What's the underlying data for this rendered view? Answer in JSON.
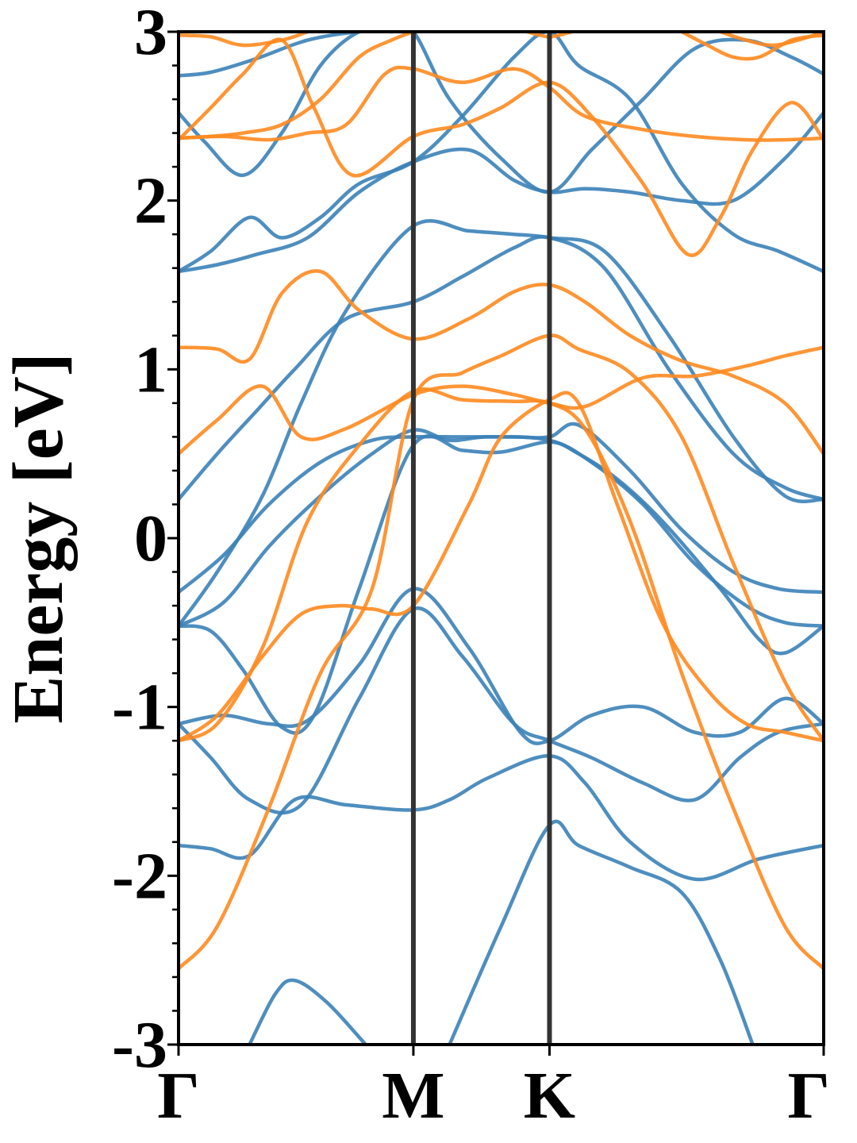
{
  "chart_data": {
    "type": "line",
    "title": "",
    "ylabel": "Energy [eV]",
    "xlabel": "",
    "ylim": [
      -3,
      3
    ],
    "yticks": [
      "3",
      "2",
      "1",
      "0",
      "-1",
      "-2",
      "-3"
    ],
    "ytick_values": [
      3,
      2,
      1,
      0,
      -1,
      -2,
      -3
    ],
    "minor_y_step": 0.2,
    "kpath": [
      {
        "label": "Γ",
        "k": 0
      },
      {
        "label": "M",
        "k": 0.364
      },
      {
        "label": "K",
        "k": 0.575
      },
      {
        "label": "Γ",
        "k": 1
      }
    ],
    "kpath_line_color": "#333333",
    "series": [
      {
        "color": "#3b82b8",
        "k": [
          0,
          0.05,
          0.11,
          0.18,
          0.26,
          0.364,
          0.42,
          0.48,
          0.575,
          0.63,
          0.7,
          0.8,
          0.9,
          1
        ],
        "y": [
          -1.82,
          -1.84,
          -1.88,
          -1.55,
          -1.58,
          -1.61,
          -1.55,
          -1.42,
          -1.29,
          -1.45,
          -1.8,
          -2.02,
          -1.9,
          -1.82
        ]
      },
      {
        "color": "#3b82b8",
        "k": [
          0,
          0.05,
          0.11,
          0.19,
          0.28,
          0.364,
          0.44,
          0.52,
          0.575,
          0.64,
          0.72,
          0.8,
          0.87,
          0.93,
          1
        ],
        "y": [
          -1.1,
          -1.3,
          -1.55,
          -1.58,
          -0.95,
          -0.42,
          -0.7,
          -1.1,
          -1.2,
          -1.3,
          -1.45,
          -1.55,
          -1.3,
          -1.15,
          -1.1
        ]
      },
      {
        "color": "#3b82b8",
        "k": [
          0,
          0.07,
          0.14,
          0.2,
          0.28,
          0.364,
          0.45,
          0.53,
          0.575,
          0.64,
          0.72,
          0.8,
          0.87,
          0.94,
          1
        ],
        "y": [
          -1.1,
          -1.05,
          -1.1,
          -1.08,
          -0.75,
          -0.3,
          -0.65,
          -1.15,
          -1.2,
          -1.05,
          -1.0,
          -1.15,
          -1.15,
          -0.95,
          -1.1
        ]
      },
      {
        "color": "#3b82b8",
        "k": [
          0,
          0.05,
          0.1,
          0.16,
          0.21,
          0.28,
          0.364,
          0.44,
          0.5,
          0.575,
          0.62,
          0.68,
          0.75,
          0.84,
          0.9,
          0.94,
          1
        ],
        "y": [
          -0.52,
          -0.55,
          -0.78,
          -1.12,
          -1.05,
          -0.3,
          0.55,
          0.52,
          0.51,
          0.57,
          0.5,
          0.35,
          0.1,
          -0.3,
          -0.6,
          -0.68,
          -0.52
        ]
      },
      {
        "color": "#3b82b8",
        "k": [
          0,
          0.07,
          0.14,
          0.22,
          0.3,
          0.364,
          0.42,
          0.48,
          0.575,
          0.64,
          0.72,
          0.8,
          0.88,
          0.94,
          1
        ],
        "y": [
          -0.52,
          -0.38,
          -0.05,
          0.25,
          0.5,
          0.64,
          0.58,
          0.6,
          0.58,
          0.45,
          0.2,
          -0.15,
          -0.4,
          -0.5,
          -0.52
        ]
      },
      {
        "color": "#3b82b8",
        "k": [
          0,
          0.07,
          0.14,
          0.22,
          0.3,
          0.364,
          0.44,
          0.52,
          0.575,
          0.62,
          0.7,
          0.78,
          0.86,
          0.93,
          1
        ],
        "y": [
          -0.32,
          -0.1,
          0.2,
          0.45,
          0.58,
          0.6,
          0.6,
          0.6,
          0.6,
          0.67,
          0.4,
          0.05,
          -0.2,
          -0.3,
          -0.32
        ]
      },
      {
        "color": "#3b82b8",
        "k": [
          0,
          0.06,
          0.12,
          0.18,
          0.26,
          0.364,
          0.44,
          0.52,
          0.575,
          0.66,
          0.76,
          0.86,
          0.94,
          1
        ],
        "y": [
          0.23,
          0.5,
          0.75,
          1.0,
          1.3,
          1.4,
          1.55,
          1.72,
          1.78,
          1.6,
          1.0,
          0.5,
          0.3,
          0.23
        ]
      },
      {
        "color": "#3b82b8",
        "k": [
          0,
          0.06,
          0.13,
          0.19,
          0.26,
          0.364,
          0.45,
          0.52,
          0.575,
          0.66,
          0.76,
          0.86,
          0.94,
          1
        ],
        "y": [
          -0.52,
          -0.2,
          0.25,
          0.8,
          1.35,
          1.85,
          1.82,
          1.8,
          1.78,
          1.7,
          1.2,
          0.6,
          0.25,
          0.23
        ]
      },
      {
        "color": "#3b82b8",
        "k": [
          0,
          0.05,
          0.11,
          0.16,
          0.22,
          0.28,
          0.364,
          0.44,
          0.52,
          0.575,
          0.62,
          0.7,
          0.78,
          0.86,
          0.93,
          1
        ],
        "y": [
          1.58,
          1.7,
          1.9,
          1.78,
          1.9,
          2.1,
          2.23,
          2.5,
          2.85,
          3.0,
          2.8,
          2.6,
          2.1,
          1.8,
          1.7,
          1.58
        ]
      },
      {
        "color": "#3b82b8",
        "k": [
          0,
          0.06,
          0.12,
          0.2,
          0.28,
          0.364,
          0.45,
          0.52,
          0.575,
          0.63,
          0.7,
          0.78,
          0.86,
          0.94,
          1
        ],
        "y": [
          1.58,
          1.62,
          1.68,
          1.78,
          2.05,
          2.23,
          2.3,
          2.12,
          2.05,
          2.07,
          2.05,
          2.0,
          2.0,
          2.25,
          2.52
        ]
      },
      {
        "color": "#3b82b8",
        "k": [
          0,
          0.04,
          0.1,
          0.16,
          0.22,
          0.28,
          0.33,
          0.364,
          0.42,
          0.5,
          0.575,
          0.64,
          0.72,
          0.8,
          0.88,
          0.95,
          1
        ],
        "y": [
          2.52,
          2.35,
          2.15,
          2.4,
          2.8,
          3.0,
          3.0,
          3.0,
          2.6,
          2.25,
          2.05,
          2.3,
          2.6,
          2.9,
          2.95,
          2.85,
          2.75
        ]
      },
      {
        "color": "#3b82b8",
        "k": [
          0,
          0.05,
          0.12,
          0.2,
          0.28,
          0.35
        ],
        "y": [
          2.74,
          2.76,
          2.84,
          2.95,
          3.0,
          3.0
        ]
      },
      {
        "color": "#3b82b8",
        "k": [
          0.11,
          0.15,
          0.18,
          0.23,
          0.29
        ],
        "y": [
          -3.0,
          -2.7,
          -2.62,
          -2.75,
          -3.0
        ]
      },
      {
        "color": "#3b82b8",
        "k": [
          0.42,
          0.5,
          0.575,
          0.62,
          0.7,
          0.78,
          0.84,
          0.89
        ],
        "y": [
          -3.0,
          -2.3,
          -1.7,
          -1.82,
          -1.95,
          -2.1,
          -2.5,
          -3.0
        ]
      },
      {
        "color": "#ff8a1f",
        "k": [
          0,
          0.06,
          0.14,
          0.22,
          0.3,
          0.364,
          0.44,
          0.5,
          0.575,
          0.62,
          0.7,
          0.78,
          0.86,
          0.94,
          1
        ],
        "y": [
          -2.55,
          -2.3,
          -1.6,
          -0.8,
          -0.3,
          0.82,
          0.98,
          1.08,
          1.2,
          1.12,
          0.98,
          0.6,
          -0.15,
          -0.85,
          -1.2
        ]
      },
      {
        "color": "#ff8a1f",
        "k": [
          0,
          0.06,
          0.13,
          0.2,
          0.28,
          0.364,
          0.44,
          0.52,
          0.575,
          0.63,
          0.7,
          0.78,
          0.86,
          0.94,
          1
        ],
        "y": [
          -1.2,
          -1.1,
          -0.65,
          0.1,
          0.55,
          0.87,
          0.82,
          0.81,
          0.8,
          0.65,
          0.1,
          -0.8,
          -1.6,
          -2.3,
          -2.55
        ]
      },
      {
        "color": "#ff8a1f",
        "k": [
          0,
          0.06,
          0.13,
          0.19,
          0.25,
          0.3,
          0.364,
          0.45,
          0.5,
          0.575,
          0.62,
          0.68,
          0.75,
          0.82,
          0.88,
          0.94,
          1
        ],
        "y": [
          -1.2,
          -1.05,
          -0.7,
          -0.45,
          -0.4,
          -0.42,
          -0.4,
          0.2,
          0.6,
          0.82,
          0.8,
          0.2,
          -0.5,
          -0.9,
          -1.1,
          -1.15,
          -1.2
        ]
      },
      {
        "color": "#ff8a1f",
        "k": [
          0,
          0.06,
          0.13,
          0.19,
          0.26,
          0.364,
          0.44,
          0.52,
          0.575,
          0.63,
          0.72,
          0.8,
          0.88,
          0.94,
          1
        ],
        "y": [
          0.5,
          0.7,
          0.9,
          0.6,
          0.65,
          0.85,
          0.9,
          0.85,
          0.8,
          0.78,
          0.95,
          0.96,
          1.02,
          1.08,
          1.13
        ]
      },
      {
        "color": "#ff8a1f",
        "k": [
          0,
          0.06,
          0.11,
          0.16,
          0.22,
          0.28,
          0.364,
          0.45,
          0.52,
          0.575,
          0.63,
          0.7,
          0.78,
          0.86,
          0.94,
          1
        ],
        "y": [
          1.13,
          1.12,
          1.06,
          1.45,
          1.58,
          1.35,
          1.18,
          1.3,
          1.46,
          1.5,
          1.4,
          1.2,
          1.05,
          0.96,
          0.8,
          0.5
        ]
      },
      {
        "color": "#ff8a1f",
        "k": [
          0,
          0.05,
          0.1,
          0.16,
          0.21,
          0.27,
          0.364,
          0.44,
          0.5,
          0.575,
          0.64,
          0.72,
          0.79,
          0.84,
          0.89,
          0.95,
          1
        ],
        "y": [
          2.36,
          2.55,
          2.75,
          2.95,
          2.55,
          2.15,
          2.38,
          2.45,
          2.55,
          2.7,
          2.5,
          2.1,
          1.68,
          1.9,
          2.3,
          2.58,
          2.36
        ]
      },
      {
        "color": "#ff8a1f",
        "k": [
          0,
          0.07,
          0.14,
          0.2,
          0.26,
          0.32,
          0.364,
          0.44,
          0.52,
          0.575,
          0.63,
          0.72,
          0.8,
          0.88,
          0.94,
          1
        ],
        "y": [
          2.37,
          2.38,
          2.36,
          2.4,
          2.45,
          2.75,
          2.78,
          2.7,
          2.78,
          2.67,
          2.5,
          2.42,
          2.38,
          2.36,
          2.36,
          2.37
        ]
      },
      {
        "color": "#ff8a1f",
        "k": [
          0,
          0.05,
          0.1,
          0.16,
          0.22,
          0.28,
          0.33,
          0.364
        ],
        "y": [
          2.37,
          2.38,
          2.4,
          2.45,
          2.6,
          2.85,
          2.95,
          3.0
        ]
      },
      {
        "color": "#ff8a1f",
        "k": [
          0,
          0.05,
          0.1,
          0.16,
          0.2
        ],
        "y": [
          2.98,
          2.97,
          2.92,
          2.95,
          3.0
        ]
      },
      {
        "color": "#ff8a1f",
        "k": [
          0.54,
          0.56,
          0.575,
          0.59,
          0.61
        ],
        "y": [
          3.0,
          2.98,
          2.97,
          2.98,
          3.0
        ]
      },
      {
        "color": "#ff8a1f",
        "k": [
          0.78,
          0.82,
          0.86,
          0.9,
          0.95,
          1
        ],
        "y": [
          3.0,
          2.92,
          2.85,
          2.85,
          2.95,
          2.98
        ]
      },
      {
        "color": "#ff8a1f",
        "k": [
          0.84,
          0.88,
          0.92,
          0.96,
          1
        ],
        "y": [
          3.0,
          2.95,
          2.92,
          2.95,
          3.0
        ]
      }
    ]
  }
}
